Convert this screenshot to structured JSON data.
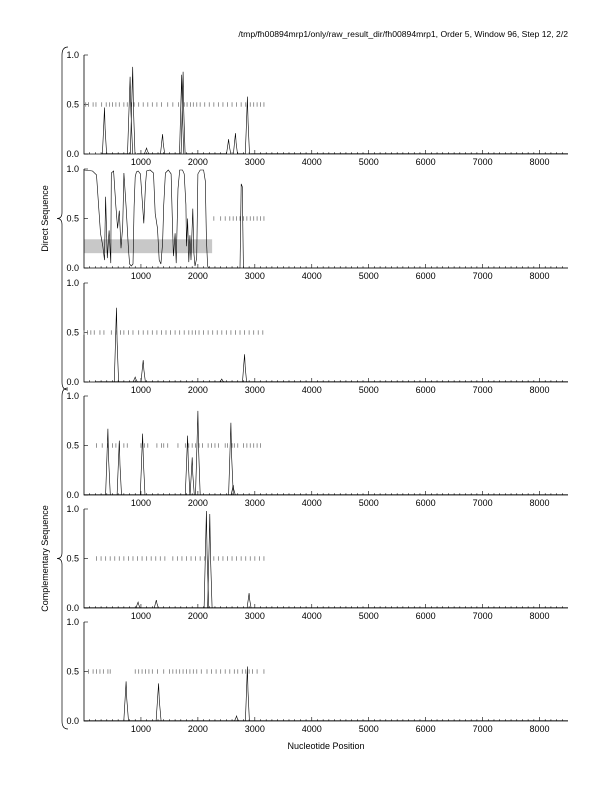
{
  "header": {
    "title": "/tmp/fh00894mrp1/only/raw_result_dir/fh00894mrp1, Order 5, Window 96, Step 12, 2/2"
  },
  "axis": {
    "xlabel": "Nucleotide Position",
    "x_ticks": [
      1000,
      2000,
      3000,
      4000,
      5000,
      6000,
      7000,
      8000
    ],
    "x_tick_labels": [
      "1000",
      "2000",
      "3000",
      "4000",
      "5000",
      "6000",
      "7000",
      "8000"
    ],
    "xlim": [
      0,
      8500
    ],
    "ylim": [
      0,
      1
    ],
    "y_ticks": [
      0,
      0.5,
      1
    ],
    "y_tick_labels": [
      "0.0",
      "0.5",
      "1.0"
    ],
    "x_minor_tick_step": 100
  },
  "groups": [
    {
      "label": "Direct Sequence",
      "panels": [
        0,
        1,
        2
      ]
    },
    {
      "label": "Complementary Sequence",
      "panels": [
        3,
        4,
        5
      ]
    }
  ],
  "colors": {
    "trace": "#000000",
    "dash": "#7a7a7a",
    "band": "#c8c8c8"
  },
  "chart_data": [
    {
      "type": "line",
      "panel": 1,
      "group": "Direct Sequence",
      "threshold_marks": {
        "y": 0.5,
        "x": [
          30,
          80,
          160,
          210,
          310,
          390,
          450,
          500,
          560,
          620,
          700,
          760,
          830,
          880,
          960,
          1040,
          1120,
          1200,
          1280,
          1360,
          1470,
          1560,
          1660,
          1760,
          1810,
          1870,
          1920,
          1980,
          2040,
          2120,
          2200,
          2280,
          2360,
          2440,
          2520,
          2600,
          2680,
          2760,
          2840,
          2920,
          2980,
          3040,
          3100,
          3160
        ]
      },
      "peaks": [
        {
          "x": 360,
          "y": 0.47,
          "w": 22
        },
        {
          "x": 810,
          "y": 0.78,
          "w": 38
        },
        {
          "x": 855,
          "y": 0.88,
          "w": 30
        },
        {
          "x": 1100,
          "y": 0.06,
          "w": 30
        },
        {
          "x": 1380,
          "y": 0.2,
          "w": 22
        },
        {
          "x": 1715,
          "y": 0.8,
          "w": 22
        },
        {
          "x": 1740,
          "y": 0.83,
          "w": 18
        },
        {
          "x": 2540,
          "y": 0.15,
          "w": 22
        },
        {
          "x": 2660,
          "y": 0.21,
          "w": 20
        },
        {
          "x": 2870,
          "y": 0.58,
          "w": 22
        }
      ],
      "zero_segments": [
        [
          300,
          800
        ],
        [
          930,
          1680
        ],
        [
          1790,
          2500
        ],
        [
          2700,
          2830
        ],
        [
          2920,
          8500
        ]
      ]
    },
    {
      "type": "line",
      "panel": 2,
      "group": "Direct Sequence",
      "band": {
        "x0": 0,
        "x1": 2250,
        "y0": 0.15,
        "y1": 0.29
      },
      "threshold_marks": {
        "y": 0.5,
        "x": [
          2280,
          2400,
          2480,
          2560,
          2620,
          2680,
          2740,
          2800,
          2860,
          2920,
          2980,
          3040,
          3100,
          3160
        ]
      },
      "trace_points": [
        [
          0,
          0.99
        ],
        [
          150,
          0.98
        ],
        [
          220,
          0.94
        ],
        [
          260,
          0.6
        ],
        [
          290,
          0.35
        ],
        [
          330,
          0.22
        ],
        [
          360,
          0.08
        ],
        [
          380,
          0.72
        ],
        [
          410,
          0.1
        ],
        [
          440,
          0.38
        ],
        [
          470,
          0.05
        ],
        [
          480,
          0.96
        ],
        [
          520,
          0.98
        ],
        [
          560,
          0.62
        ],
        [
          590,
          0.4
        ],
        [
          620,
          0.58
        ],
        [
          650,
          0.2
        ],
        [
          680,
          0.42
        ],
        [
          700,
          0.96
        ],
        [
          740,
          0.62
        ],
        [
          780,
          0.2
        ],
        [
          800,
          0.04
        ],
        [
          830,
          0.02
        ],
        [
          860,
          0.04
        ],
        [
          880,
          0.62
        ],
        [
          900,
          0.92
        ],
        [
          920,
          0.97
        ],
        [
          950,
          0.98
        ],
        [
          990,
          0.95
        ],
        [
          1020,
          0.7
        ],
        [
          1050,
          0.45
        ],
        [
          1080,
          0.84
        ],
        [
          1100,
          0.98
        ],
        [
          1160,
          0.99
        ],
        [
          1220,
          0.96
        ],
        [
          1250,
          0.55
        ],
        [
          1290,
          0.4
        ],
        [
          1320,
          0.08
        ],
        [
          1350,
          0.04
        ],
        [
          1380,
          0.25
        ],
        [
          1400,
          0.63
        ],
        [
          1430,
          0.96
        ],
        [
          1480,
          0.99
        ],
        [
          1530,
          0.95
        ],
        [
          1550,
          0.5
        ],
        [
          1570,
          0.12
        ],
        [
          1600,
          0.35
        ],
        [
          1620,
          0.05
        ],
        [
          1650,
          0.8
        ],
        [
          1680,
          0.99
        ],
        [
          1730,
          0.99
        ],
        [
          1760,
          0.95
        ],
        [
          1790,
          0.64
        ],
        [
          1800,
          0.22
        ],
        [
          1820,
          0.5
        ],
        [
          1840,
          0.06
        ],
        [
          1860,
          0.33
        ],
        [
          1880,
          0.08
        ],
        [
          1910,
          0.6
        ],
        [
          1930,
          0.15
        ],
        [
          1950,
          0.02
        ],
        [
          1980,
          0.1
        ],
        [
          2000,
          0.95
        ],
        [
          2040,
          0.99
        ],
        [
          2100,
          0.99
        ],
        [
          2130,
          0.88
        ],
        [
          2150,
          0.3
        ],
        [
          2170,
          0.02
        ],
        [
          2190,
          0.0
        ],
        [
          2740,
          0.0
        ],
        [
          2760,
          0.85
        ],
        [
          2780,
          0.82
        ],
        [
          2800,
          0.0
        ],
        [
          8500,
          0.0
        ]
      ]
    },
    {
      "type": "line",
      "panel": 3,
      "group": "Direct Sequence",
      "threshold_marks": {
        "y": 0.5,
        "x": [
          0,
          60,
          120,
          180,
          280,
          350,
          480,
          560,
          640,
          700,
          780,
          860,
          960,
          1040,
          1120,
          1200,
          1280,
          1360,
          1440,
          1520,
          1600,
          1680,
          1760,
          1840,
          1900,
          1960,
          2020,
          2100,
          2180,
          2260,
          2340,
          2420,
          2500,
          2580,
          2660,
          2740,
          2820,
          2900,
          2980,
          3060,
          3140
        ]
      },
      "peaks": [
        {
          "x": 570,
          "y": 0.75,
          "w": 22
        },
        {
          "x": 900,
          "y": 0.05,
          "w": 25
        },
        {
          "x": 1040,
          "y": 0.22,
          "w": 25
        },
        {
          "x": 2420,
          "y": 0.03,
          "w": 20
        },
        {
          "x": 2820,
          "y": 0.28,
          "w": 20
        }
      ],
      "zero_segments": [
        [
          200,
          8500
        ]
      ]
    },
    {
      "type": "line",
      "panel": 4,
      "group": "Complementary Sequence",
      "threshold_marks": {
        "y": 0.5,
        "x": [
          220,
          320,
          420,
          500,
          560,
          620,
          700,
          760,
          1000,
          1060,
          1120,
          1280,
          1360,
          1400,
          1470,
          1650,
          1780,
          1840,
          1900,
          1960,
          2020,
          2080,
          2180,
          2240,
          2300,
          2360,
          2480,
          2520,
          2600,
          2640,
          2700,
          2800,
          2860,
          2920,
          2980,
          3040,
          3100
        ]
      },
      "peaks": [
        {
          "x": 420,
          "y": 0.67,
          "w": 30
        },
        {
          "x": 620,
          "y": 0.55,
          "w": 25
        },
        {
          "x": 1030,
          "y": 0.62,
          "w": 30
        },
        {
          "x": 1820,
          "y": 0.6,
          "w": 28
        },
        {
          "x": 1900,
          "y": 0.38,
          "w": 20
        },
        {
          "x": 2000,
          "y": 0.85,
          "w": 30
        },
        {
          "x": 2580,
          "y": 0.73,
          "w": 30
        },
        {
          "x": 2620,
          "y": 0.1,
          "w": 20
        }
      ],
      "zero_segments": [
        [
          0,
          8500
        ]
      ]
    },
    {
      "type": "line",
      "panel": 5,
      "group": "Complementary Sequence",
      "threshold_marks": {
        "y": 0.5,
        "x": [
          220,
          300,
          380,
          460,
          540,
          620,
          700,
          780,
          860,
          940,
          1020,
          1100,
          1180,
          1260,
          1340,
          1420,
          1560,
          1640,
          1720,
          1800,
          1880,
          1960,
          2040,
          2120,
          2280,
          2360,
          2440,
          2520,
          2600,
          2680,
          2760,
          2840,
          2920,
          3000,
          3080,
          3160
        ]
      },
      "peaks": [
        {
          "x": 950,
          "y": 0.06,
          "w": 22
        },
        {
          "x": 1270,
          "y": 0.08,
          "w": 22
        },
        {
          "x": 2150,
          "y": 0.98,
          "w": 30
        },
        {
          "x": 2210,
          "y": 0.95,
          "w": 25
        },
        {
          "x": 2900,
          "y": 0.15,
          "w": 18
        }
      ],
      "zero_segments": [
        [
          0,
          8500
        ]
      ]
    },
    {
      "type": "line",
      "panel": 6,
      "group": "Complementary Sequence",
      "threshold_marks": {
        "y": 0.5,
        "x": [
          80,
          160,
          220,
          280,
          340,
          420,
          460,
          900,
          960,
          1020,
          1080,
          1140,
          1200,
          1290,
          1400,
          1500,
          1560,
          1620,
          1680,
          1740,
          1800,
          1860,
          1920,
          1980,
          2060,
          2160,
          2240,
          2320,
          2400,
          2480,
          2560,
          2640,
          2700,
          2780,
          2840,
          2900,
          2960,
          3040,
          3160
        ]
      },
      "peaks": [
        {
          "x": 740,
          "y": 0.4,
          "w": 30
        },
        {
          "x": 1310,
          "y": 0.38,
          "w": 35
        },
        {
          "x": 2680,
          "y": 0.05,
          "w": 20
        },
        {
          "x": 2870,
          "y": 0.55,
          "w": 18
        }
      ],
      "zero_segments": [
        [
          0,
          8500
        ]
      ]
    }
  ]
}
